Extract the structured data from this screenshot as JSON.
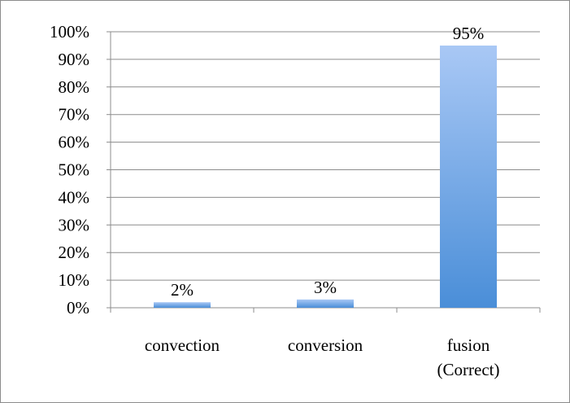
{
  "chart_data": {
    "type": "bar",
    "title": "",
    "xlabel": "",
    "ylabel": "",
    "categories": [
      [
        "convection"
      ],
      [
        "conversion"
      ],
      [
        "fusion",
        "(Correct)"
      ]
    ],
    "values": [
      2,
      3,
      95
    ],
    "value_labels": [
      "2%",
      "3%",
      "95%"
    ],
    "ylim": [
      0,
      100
    ],
    "yticks": [
      0,
      10,
      20,
      30,
      40,
      50,
      60,
      70,
      80,
      90,
      100
    ],
    "ytick_labels": [
      "0%",
      "10%",
      "20%",
      "30%",
      "40%",
      "50%",
      "60%",
      "70%",
      "80%",
      "90%",
      "100%"
    ],
    "grid": true,
    "legend": "none",
    "bar_color_top": "#a9c8f5",
    "bar_color_bottom": "#4a8ed8",
    "grid_color": "#8c8c8c"
  }
}
